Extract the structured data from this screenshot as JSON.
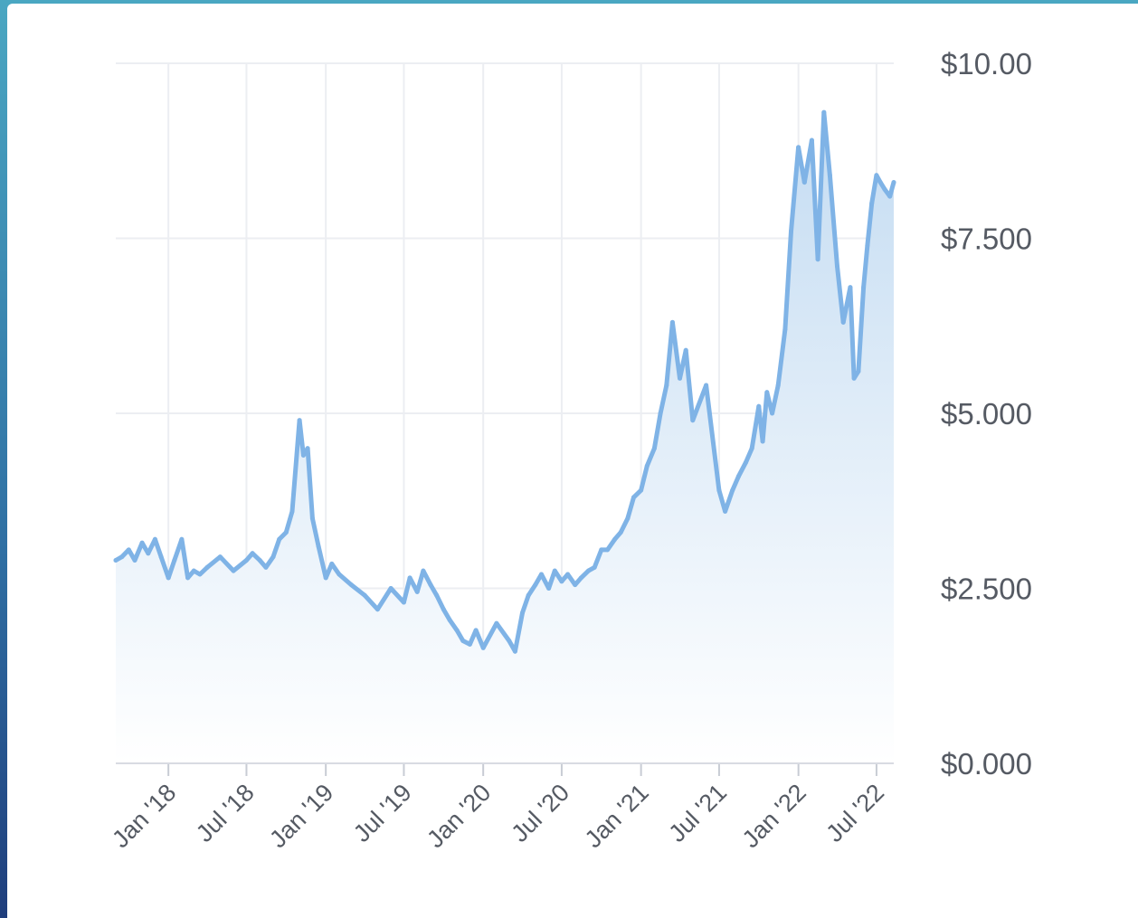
{
  "chart_data": {
    "type": "area",
    "title": "",
    "xlabel": "",
    "ylabel": "",
    "x_range": [
      "2017-09-01",
      "2022-08-10"
    ],
    "ylim": [
      0,
      10
    ],
    "y_ticks": [
      {
        "value": 0,
        "label": "$0.000"
      },
      {
        "value": 2.5,
        "label": "$2.500"
      },
      {
        "value": 5,
        "label": "$5.000"
      },
      {
        "value": 7.5,
        "label": "$7.500"
      },
      {
        "value": 10,
        "label": "$10.00"
      }
    ],
    "x_ticks": [
      {
        "value": "2018-01-01",
        "label": "Jan '18"
      },
      {
        "value": "2018-07-01",
        "label": "Jul '18"
      },
      {
        "value": "2019-01-01",
        "label": "Jan '19"
      },
      {
        "value": "2019-07-01",
        "label": "Jul '19"
      },
      {
        "value": "2020-01-01",
        "label": "Jan '20"
      },
      {
        "value": "2020-07-01",
        "label": "Jul '20"
      },
      {
        "value": "2021-01-01",
        "label": "Jan '21"
      },
      {
        "value": "2021-07-01",
        "label": "Jul '21"
      },
      {
        "value": "2022-01-01",
        "label": "Jan '22"
      },
      {
        "value": "2022-07-01",
        "label": "Jul '22"
      }
    ],
    "grid": true,
    "legend": "none",
    "colors": {
      "line": "#7fb3e6",
      "fill_top": "#c4dcf2",
      "fill_bottom": "#ffffff"
    },
    "series": [
      {
        "x": [
          "2017-09-01",
          "2017-09-15",
          "2017-10-01",
          "2017-10-15",
          "2017-11-01",
          "2017-11-15",
          "2017-12-01",
          "2017-12-15",
          "2018-01-01",
          "2018-01-15",
          "2018-02-01",
          "2018-02-15",
          "2018-03-01",
          "2018-03-15",
          "2018-04-01",
          "2018-05-01",
          "2018-06-01",
          "2018-07-01",
          "2018-07-15",
          "2018-08-01",
          "2018-08-15",
          "2018-09-01",
          "2018-09-15",
          "2018-10-01",
          "2018-10-15",
          "2018-11-01",
          "2018-11-10",
          "2018-11-20",
          "2018-12-01",
          "2018-12-15",
          "2019-01-01",
          "2019-01-15",
          "2019-02-01",
          "2019-03-01",
          "2019-04-01",
          "2019-05-01",
          "2019-06-01",
          "2019-07-01",
          "2019-07-15",
          "2019-08-01",
          "2019-08-15",
          "2019-09-01",
          "2019-09-15",
          "2019-10-01",
          "2019-10-15",
          "2019-11-01",
          "2019-11-15",
          "2019-12-01",
          "2019-12-15",
          "2020-01-01",
          "2020-02-01",
          "2020-03-01",
          "2020-03-15",
          "2020-04-01",
          "2020-04-15",
          "2020-05-01",
          "2020-05-15",
          "2020-06-01",
          "2020-06-15",
          "2020-07-01",
          "2020-07-15",
          "2020-08-01",
          "2020-08-15",
          "2020-09-01",
          "2020-09-15",
          "2020-10-01",
          "2020-10-15",
          "2020-11-01",
          "2020-11-15",
          "2020-12-01",
          "2020-12-15",
          "2021-01-01",
          "2021-01-15",
          "2021-02-01",
          "2021-02-15",
          "2021-03-01",
          "2021-03-15",
          "2021-04-01",
          "2021-04-15",
          "2021-05-01",
          "2021-06-01",
          "2021-07-01",
          "2021-07-15",
          "2021-08-01",
          "2021-08-15",
          "2021-09-01",
          "2021-09-15",
          "2021-10-01",
          "2021-10-10",
          "2021-10-20",
          "2021-11-01",
          "2021-11-15",
          "2021-12-01",
          "2021-12-15",
          "2022-01-01",
          "2022-01-15",
          "2022-02-01",
          "2022-02-15",
          "2022-03-01",
          "2022-03-15",
          "2022-04-01",
          "2022-04-15",
          "2022-05-01",
          "2022-05-10",
          "2022-05-20",
          "2022-06-01",
          "2022-06-10",
          "2022-06-20",
          "2022-07-01",
          "2022-07-10",
          "2022-07-20",
          "2022-08-01",
          "2022-08-10"
        ],
        "values": [
          2.9,
          2.95,
          3.05,
          2.9,
          3.15,
          3.0,
          3.2,
          2.95,
          2.65,
          2.9,
          3.2,
          2.65,
          2.75,
          2.7,
          2.8,
          2.95,
          2.75,
          2.9,
          3.0,
          2.9,
          2.8,
          2.95,
          3.2,
          3.3,
          3.6,
          4.9,
          4.4,
          4.5,
          3.5,
          3.1,
          2.65,
          2.85,
          2.7,
          2.55,
          2.4,
          2.2,
          2.5,
          2.3,
          2.65,
          2.45,
          2.75,
          2.55,
          2.4,
          2.2,
          2.05,
          1.9,
          1.75,
          1.7,
          1.9,
          1.65,
          2.0,
          1.75,
          1.6,
          2.15,
          2.4,
          2.55,
          2.7,
          2.5,
          2.75,
          2.6,
          2.7,
          2.55,
          2.65,
          2.75,
          2.8,
          3.05,
          3.05,
          3.2,
          3.3,
          3.5,
          3.8,
          3.9,
          4.25,
          4.5,
          5.0,
          5.4,
          6.3,
          5.5,
          5.9,
          4.9,
          5.4,
          3.9,
          3.6,
          3.9,
          4.1,
          4.3,
          4.5,
          5.1,
          4.6,
          5.3,
          5.0,
          5.4,
          6.2,
          7.6,
          8.8,
          8.3,
          8.9,
          7.2,
          9.3,
          8.4,
          7.1,
          6.3,
          6.8,
          5.5,
          5.6,
          6.8,
          7.4,
          8.0,
          8.4,
          8.3,
          8.2,
          8.1,
          8.3
        ]
      }
    ]
  }
}
